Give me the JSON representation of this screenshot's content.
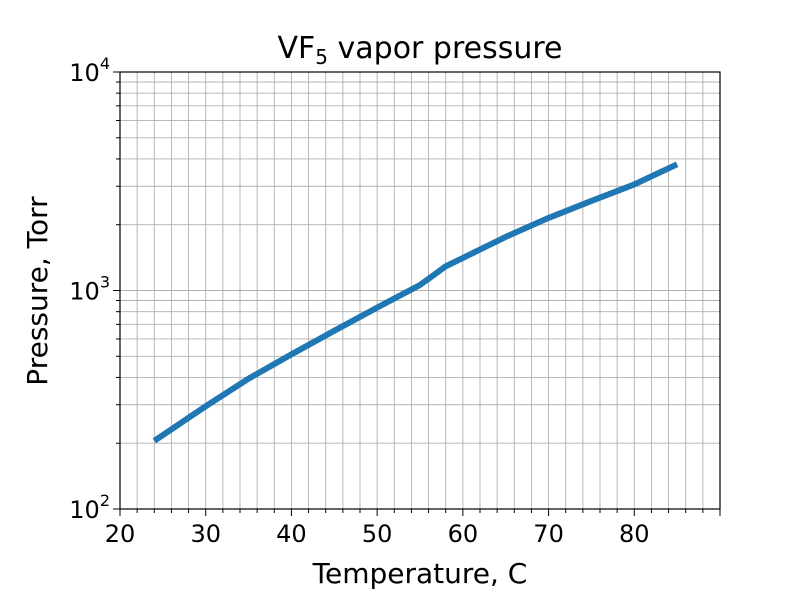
{
  "chart_data": {
    "type": "line",
    "title": "VF",
    "title_subscript": "5",
    "title_rest": " vapor pressure",
    "xlabel": "Temperature, C",
    "ylabel": "Pressure, Torr",
    "xlim": [
      20,
      90
    ],
    "ylim": [
      100,
      10000
    ],
    "yscale": "log",
    "grid": "major and minor",
    "line_color": "#1f77b4",
    "x_ticks": [
      20,
      30,
      40,
      50,
      60,
      70,
      80
    ],
    "x_tick_labels": [
      "20",
      "30",
      "40",
      "50",
      "60",
      "70",
      "80"
    ],
    "y_ticks": [
      100,
      1000,
      10000
    ],
    "y_tick_labels": [
      {
        "base": "10",
        "exp": "2"
      },
      {
        "base": "10",
        "exp": "3"
      },
      {
        "base": "10",
        "exp": "4"
      }
    ],
    "series": [
      {
        "x": [
          24,
          30,
          35,
          40,
          45,
          50,
          55,
          58,
          60,
          65,
          70,
          75,
          80,
          85
        ],
        "y": [
          205,
          295,
          395,
          510,
          655,
          835,
          1060,
          1290,
          1410,
          1760,
          2150,
          2570,
          3060,
          3780
        ]
      }
    ]
  }
}
